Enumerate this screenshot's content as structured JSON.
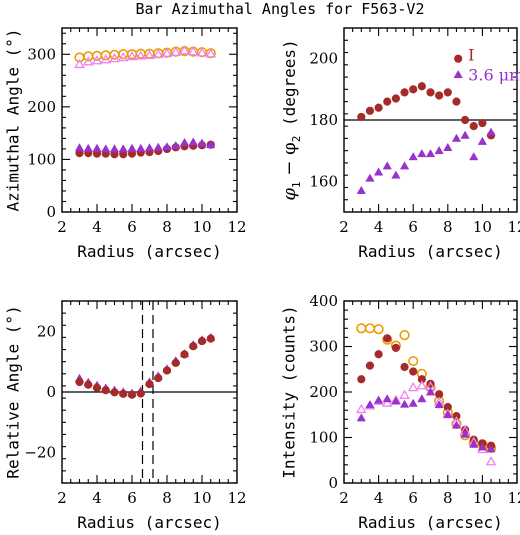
{
  "title": "Bar Azimuthal Angles for F563-V2",
  "colors": {
    "dark_red": "#a52a2a",
    "purple": "#9932cc",
    "orange": "#ee9a00",
    "violet": "#ee82ee",
    "axis": "#000000"
  },
  "chart_data": [
    {
      "id": "azimuthal",
      "type": "scatter",
      "xlabel": "Radius (arcsec)",
      "ylabel": "Azimuthal Angle (°)",
      "xlim": [
        2,
        12
      ],
      "ylim": [
        0,
        350
      ],
      "xticks": [
        2,
        4,
        6,
        8,
        10,
        12
      ],
      "yticks": [
        0,
        100,
        200,
        300
      ],
      "ytick_labels": [
        "0",
        "100",
        "200",
        "300"
      ],
      "series": [
        {
          "marker": "filled-circle",
          "color": "#a52a2a",
          "x": [
            3.0,
            3.5,
            4.0,
            4.5,
            5.0,
            5.5,
            6.0,
            6.5,
            7.0,
            7.5,
            8.0,
            8.5,
            9.0,
            9.5,
            10.0,
            10.5
          ],
          "y": [
            112,
            112,
            111,
            111,
            110,
            110,
            111,
            113,
            114,
            116,
            120,
            123,
            125,
            126,
            127,
            128
          ]
        },
        {
          "marker": "filled-triangle",
          "color": "#9932cc",
          "x": [
            3.0,
            3.5,
            4.0,
            4.5,
            5.0,
            5.5,
            6.0,
            6.5,
            7.0,
            7.5,
            8.0,
            8.5,
            9.0,
            9.5,
            10.0,
            10.5
          ],
          "y": [
            122,
            121,
            121,
            120,
            120,
            120,
            121,
            121,
            122,
            123,
            124,
            126,
            132,
            133,
            131,
            128
          ]
        },
        {
          "marker": "open-circle",
          "color": "#ee9a00",
          "x": [
            3.0,
            3.5,
            4.0,
            4.5,
            5.0,
            5.5,
            6.0,
            6.5,
            7.0,
            7.5,
            8.0,
            8.5,
            9.0,
            9.5,
            10.0,
            10.5
          ],
          "y": [
            294,
            296,
            297,
            298,
            299,
            300,
            300,
            301,
            301,
            302,
            303,
            305,
            306,
            305,
            304,
            302
          ]
        },
        {
          "marker": "open-triangle",
          "color": "#ee82ee",
          "x": [
            3.0,
            3.5,
            4.0,
            4.5,
            5.0,
            5.5,
            6.0,
            6.5,
            7.0,
            7.5,
            8.0,
            8.5,
            9.0,
            9.5,
            10.0,
            10.5
          ],
          "y": [
            281,
            286,
            288,
            290,
            292,
            294,
            296,
            297,
            298,
            300,
            302,
            304,
            307,
            305,
            303,
            301
          ]
        }
      ]
    },
    {
      "id": "phase-difference",
      "type": "scatter",
      "xlabel": "Radius (arcsec)",
      "ylabel_parts": [
        "φ",
        "1",
        " − φ",
        "2",
        " (degrees)"
      ],
      "xlim": [
        2,
        12
      ],
      "ylim": [
        150,
        210
      ],
      "xticks": [
        2,
        4,
        6,
        8,
        10,
        12
      ],
      "yticks": [
        160,
        180,
        200
      ],
      "ytick_labels": [
        "160",
        "180",
        "200"
      ],
      "reference_line": 180,
      "legend": [
        {
          "marker": "filled-circle",
          "color": "#a52a2a",
          "label": "I"
        },
        {
          "marker": "filled-triangle",
          "color": "#9932cc",
          "label": "3.6 μm"
        }
      ],
      "series": [
        {
          "marker": "filled-circle",
          "color": "#a52a2a",
          "x": [
            3.0,
            3.5,
            4.0,
            4.5,
            5.0,
            5.5,
            6.0,
            6.5,
            7.0,
            7.5,
            8.0,
            8.5,
            9.0,
            9.5,
            10.0,
            10.5
          ],
          "y": [
            181,
            183,
            184,
            186,
            187,
            189,
            190,
            191,
            189,
            188,
            189,
            186,
            180,
            178,
            179,
            175
          ]
        },
        {
          "marker": "filled-triangle",
          "color": "#9932cc",
          "x": [
            3.0,
            3.5,
            4.0,
            4.5,
            5.0,
            5.5,
            6.0,
            6.5,
            7.0,
            7.5,
            8.0,
            8.5,
            9.0,
            9.5,
            10.0,
            10.5
          ],
          "y": [
            157,
            161,
            163,
            165,
            162,
            165,
            168,
            169,
            169,
            170,
            171,
            174,
            175,
            168,
            173,
            176
          ]
        }
      ]
    },
    {
      "id": "relative-angle",
      "type": "scatter",
      "xlabel": "Radius (arcsec)",
      "ylabel": "Relative Angle (°)",
      "xlim": [
        2,
        12
      ],
      "ylim": [
        -30,
        30
      ],
      "xticks": [
        2,
        4,
        6,
        8,
        10,
        12
      ],
      "yticks": [
        -20,
        0,
        20
      ],
      "ytick_labels": [
        "−20",
        "0",
        "20"
      ],
      "reference_line": 0,
      "dashed_vlines": [
        6.6,
        7.2
      ],
      "series": [
        {
          "marker": "filled-triangle",
          "color": "#9932cc",
          "x": [
            3.0,
            3.5,
            4.0,
            4.5,
            5.0,
            5.5,
            6.0,
            6.5,
            7.0,
            7.5,
            8.0,
            8.5,
            9.0,
            9.5,
            10.0,
            10.5
          ],
          "y": [
            4.5,
            3.2,
            2.2,
            1.3,
            0.6,
            0.0,
            -0.4,
            0.3,
            3.3,
            5.3,
            7.6,
            10.3,
            12.6,
            15.6,
            17.2,
            18.0
          ]
        },
        {
          "marker": "filled-circle",
          "color": "#a52a2a",
          "x": [
            3.0,
            3.5,
            4.0,
            4.5,
            5.0,
            5.5,
            6.0,
            6.5,
            7.0,
            7.5,
            8.0,
            8.5,
            9.0,
            9.5,
            10.0,
            10.5
          ],
          "y": [
            3.3,
            2.4,
            1.4,
            0.6,
            -0.1,
            -0.6,
            -0.9,
            -0.5,
            2.6,
            4.6,
            7.1,
            9.6,
            12.4,
            15.1,
            16.8,
            17.6
          ]
        }
      ]
    },
    {
      "id": "intensity",
      "type": "scatter",
      "xlabel": "Radius (arcsec)",
      "ylabel": "Intensity (counts)",
      "xlim": [
        2,
        12
      ],
      "ylim": [
        0,
        400
      ],
      "xticks": [
        2,
        4,
        6,
        8,
        10,
        12
      ],
      "yticks": [
        0,
        100,
        200,
        300,
        400
      ],
      "ytick_labels": [
        "0",
        "100",
        "200",
        "300",
        "400"
      ],
      "series": [
        {
          "marker": "open-circle",
          "color": "#ee9a00",
          "x": [
            3.0,
            3.5,
            4.0,
            4.5,
            5.0,
            5.5,
            6.0,
            6.5,
            7.0,
            7.5,
            8.0,
            8.5,
            9.0,
            9.5,
            10.0,
            10.5
          ],
          "y": [
            340,
            340,
            338,
            315,
            302,
            325,
            268,
            240,
            210,
            180,
            155,
            130,
            105,
            88,
            85,
            77
          ]
        },
        {
          "marker": "filled-circle",
          "color": "#a52a2a",
          "x": [
            3.0,
            3.5,
            4.0,
            4.5,
            5.0,
            5.5,
            6.0,
            6.5,
            7.0,
            7.5,
            8.0,
            8.5,
            9.0,
            9.5,
            10.0,
            10.5
          ],
          "y": [
            228,
            258,
            283,
            318,
            297,
            255,
            245,
            228,
            218,
            195,
            167,
            147,
            117,
            95,
            87,
            82
          ]
        },
        {
          "marker": "open-triangle",
          "color": "#ee82ee",
          "x": [
            3.0,
            3.5,
            4.0,
            4.5,
            5.0,
            5.5,
            6.0,
            6.5,
            7.0,
            7.5,
            8.0,
            8.5,
            9.0,
            9.5,
            10.0,
            10.5
          ],
          "y": [
            162,
            170,
            180,
            176,
            182,
            193,
            210,
            214,
            212,
            178,
            152,
            135,
            115,
            90,
            74,
            47
          ]
        },
        {
          "marker": "filled-triangle",
          "color": "#9932cc",
          "x": [
            3.0,
            3.5,
            4.0,
            4.5,
            5.0,
            5.5,
            6.0,
            6.5,
            7.0,
            7.5,
            8.0,
            8.5,
            9.0,
            9.5,
            10.0,
            10.5
          ],
          "y": [
            143,
            172,
            182,
            185,
            180,
            173,
            175,
            185,
            200,
            172,
            150,
            127,
            107,
            85,
            79,
            75
          ]
        }
      ]
    }
  ]
}
